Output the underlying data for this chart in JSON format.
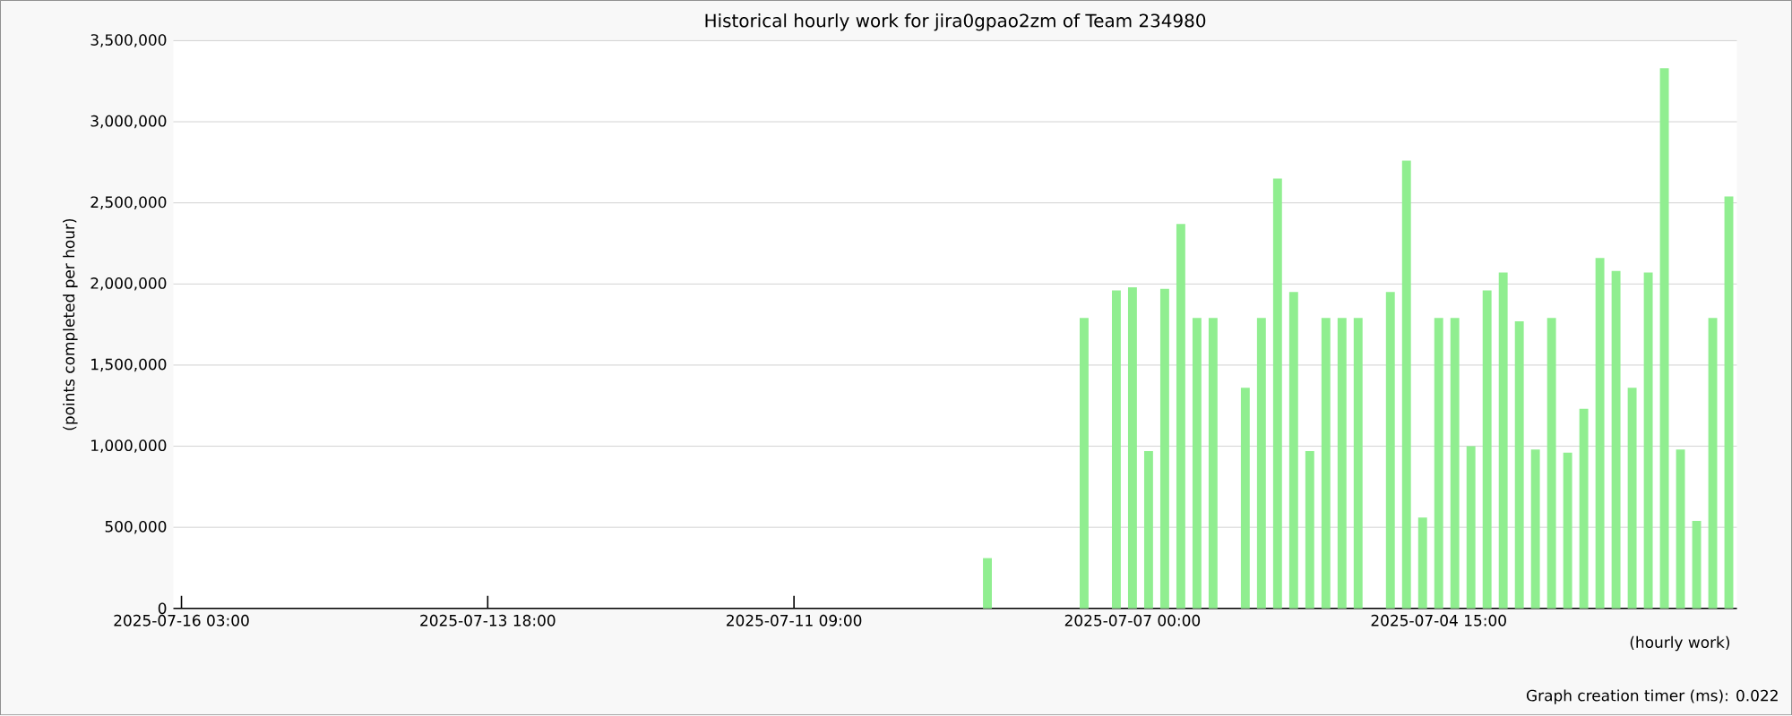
{
  "chart_data": {
    "type": "bar",
    "title": "Historical hourly work for jira0gpao2zm of Team 234980",
    "xlabel": "(hourly work)",
    "ylabel": "(points completed per hour)",
    "annotations": [
      "Graph creation timer (ms): 0.022"
    ],
    "categories": [
      "2025-07-16 03:00",
      null,
      null,
      null,
      null,
      null,
      null,
      null,
      null,
      null,
      null,
      null,
      null,
      null,
      null,
      null,
      null,
      null,
      null,
      "2025-07-13 18:00",
      null,
      null,
      null,
      null,
      null,
      null,
      null,
      null,
      null,
      null,
      null,
      null,
      null,
      null,
      null,
      null,
      null,
      null,
      "2025-07-11 09:00",
      null,
      null,
      null,
      null,
      null,
      null,
      null,
      null,
      null,
      null,
      null,
      null,
      null,
      null,
      null,
      null,
      null,
      null,
      null,
      null,
      "2025-07-07 00:00",
      null,
      null,
      null,
      null,
      null,
      null,
      null,
      null,
      null,
      null,
      null,
      null,
      null,
      null,
      null,
      null,
      null,
      null,
      "2025-07-04 15:00",
      null,
      null,
      null,
      null,
      null,
      null,
      null,
      null,
      null,
      null,
      null,
      null,
      null,
      null,
      null,
      null,
      null,
      null
    ],
    "values": [
      null,
      null,
      null,
      null,
      null,
      null,
      null,
      null,
      null,
      null,
      null,
      null,
      null,
      null,
      null,
      null,
      null,
      null,
      null,
      null,
      null,
      null,
      null,
      null,
      null,
      null,
      null,
      null,
      null,
      null,
      null,
      null,
      null,
      null,
      null,
      null,
      null,
      null,
      null,
      null,
      null,
      null,
      null,
      null,
      null,
      null,
      null,
      null,
      null,
      null,
      310000,
      null,
      null,
      null,
      null,
      null,
      1790000,
      null,
      1960000,
      1980000,
      970000,
      1970000,
      2370000,
      1790000,
      1790000,
      null,
      1360000,
      1790000,
      2650000,
      1950000,
      970000,
      1790000,
      1790000,
      1790000,
      null,
      1950000,
      2760000,
      560000,
      1790000,
      1790000,
      1000000,
      1960000,
      2070000,
      1770000,
      980000,
      1790000,
      960000,
      1230000,
      2160000,
      2080000,
      1360000,
      2070000,
      3330000,
      980000,
      540000,
      1790000,
      2540000
    ],
    "color": "#90ee90",
    "ylim": [
      0,
      3500000
    ],
    "yticks": [
      {
        "value": 0,
        "label": "0"
      },
      {
        "value": 500000,
        "label": "500,000"
      },
      {
        "value": 1000000,
        "label": "1,000,000"
      },
      {
        "value": 1500000,
        "label": "1,500,000"
      },
      {
        "value": 2000000,
        "label": "2,000,000"
      },
      {
        "value": 2500000,
        "label": "2,500,000"
      },
      {
        "value": 3000000,
        "label": "3,000,000"
      },
      {
        "value": 3500000,
        "label": "3,500,000"
      }
    ],
    "grid": "y"
  }
}
